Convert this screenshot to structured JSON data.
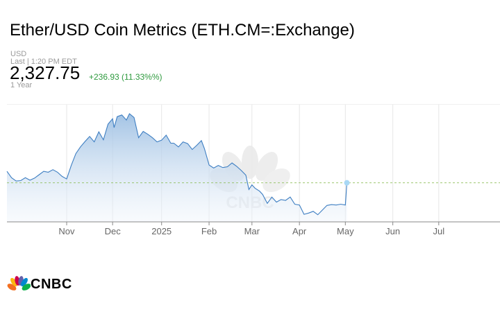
{
  "header": {
    "title": "Ether/USD Coin Metrics (ETH.CM=:Exchange)",
    "currency": "USD",
    "last": "Last | 1:20 PM EDT",
    "price": "2,327.75",
    "change": "+236.93 (11.33%%)",
    "range": "1 Year"
  },
  "brand": {
    "name": "CNBC",
    "watermark": "CNBC"
  },
  "colors": {
    "line": "#3d7ec2",
    "fill_top": "#9ec0e3",
    "fill_bottom": "#eef4fb",
    "change": "#2e9a3e",
    "marker": "#a8d8f5",
    "reference_line": "#8fbf5b"
  },
  "chart_data": {
    "type": "area",
    "title": "",
    "xlabel": "",
    "ylabel": "",
    "ylim": [
      1400,
      4200
    ],
    "x_ticks": [
      "Nov",
      "Dec",
      "2025",
      "Feb",
      "Mar",
      "Apr",
      "May",
      "Jun",
      "Jul"
    ],
    "x_tick_days": [
      39,
      69,
      101,
      132,
      160,
      191,
      221,
      252,
      282
    ],
    "last_point": {
      "day": 222,
      "value": 2327.75
    },
    "grid": "vertical",
    "series": [
      {
        "values": [
          [
            0,
            2600
          ],
          [
            3,
            2450
          ],
          [
            6,
            2370
          ],
          [
            9,
            2380
          ],
          [
            12,
            2450
          ],
          [
            15,
            2390
          ],
          [
            18,
            2440
          ],
          [
            21,
            2520
          ],
          [
            24,
            2600
          ],
          [
            27,
            2580
          ],
          [
            30,
            2640
          ],
          [
            33,
            2580
          ],
          [
            36,
            2480
          ],
          [
            39,
            2420
          ],
          [
            42,
            2740
          ],
          [
            45,
            3020
          ],
          [
            48,
            3180
          ],
          [
            51,
            3310
          ],
          [
            54,
            3430
          ],
          [
            57,
            3300
          ],
          [
            60,
            3540
          ],
          [
            63,
            3350
          ],
          [
            66,
            3720
          ],
          [
            69,
            3850
          ],
          [
            70,
            3640
          ],
          [
            72,
            3900
          ],
          [
            75,
            3940
          ],
          [
            78,
            3820
          ],
          [
            80,
            3970
          ],
          [
            83,
            3880
          ],
          [
            86,
            3400
          ],
          [
            89,
            3550
          ],
          [
            92,
            3480
          ],
          [
            95,
            3400
          ],
          [
            98,
            3300
          ],
          [
            101,
            3340
          ],
          [
            104,
            3460
          ],
          [
            107,
            3270
          ],
          [
            109,
            3270
          ],
          [
            112,
            3180
          ],
          [
            115,
            3300
          ],
          [
            118,
            3260
          ],
          [
            121,
            3120
          ],
          [
            124,
            3220
          ],
          [
            127,
            3330
          ],
          [
            129,
            3140
          ],
          [
            132,
            2750
          ],
          [
            135,
            2680
          ],
          [
            138,
            2740
          ],
          [
            141,
            2690
          ],
          [
            144,
            2710
          ],
          [
            147,
            2800
          ],
          [
            150,
            2720
          ],
          [
            153,
            2620
          ],
          [
            156,
            2510
          ],
          [
            158,
            2170
          ],
          [
            160,
            2280
          ],
          [
            162,
            2200
          ],
          [
            165,
            2130
          ],
          [
            167,
            2050
          ],
          [
            170,
            1840
          ],
          [
            173,
            1990
          ],
          [
            176,
            1870
          ],
          [
            179,
            1930
          ],
          [
            182,
            1910
          ],
          [
            185,
            1990
          ],
          [
            188,
            1820
          ],
          [
            191,
            1800
          ],
          [
            194,
            1580
          ],
          [
            197,
            1610
          ],
          [
            200,
            1650
          ],
          [
            203,
            1570
          ],
          [
            206,
            1680
          ],
          [
            209,
            1790
          ],
          [
            212,
            1810
          ],
          [
            215,
            1800
          ],
          [
            218,
            1820
          ],
          [
            221,
            1800
          ],
          [
            222,
            2327.75
          ]
        ]
      }
    ]
  }
}
